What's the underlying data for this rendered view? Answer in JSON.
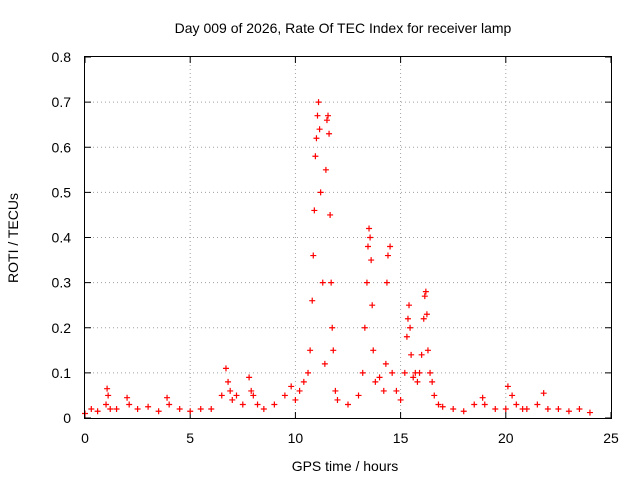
{
  "chart_data": {
    "type": "scatter",
    "title": "Day 009 of 2026, Rate Of TEC Index for receiver lamp",
    "xlabel": "GPS time / hours",
    "ylabel": "ROTI / TECUs",
    "xlim": [
      0,
      25
    ],
    "ylim": [
      0,
      0.8
    ],
    "xticks": [
      0,
      5,
      10,
      15,
      20,
      25
    ],
    "xtick_labels": [
      "0",
      "5",
      "10",
      "15",
      "20",
      "25"
    ],
    "yticks": [
      0,
      0.1,
      0.2,
      0.3,
      0.4,
      0.5,
      0.6,
      0.7,
      0.8
    ],
    "ytick_labels": [
      "0",
      "0.1",
      "0.2",
      "0.3",
      "0.4",
      "0.5",
      "0.6",
      "0.7",
      "0.8"
    ],
    "grid": true,
    "marker": "+",
    "color": "#ff0000",
    "series": [
      {
        "name": "ROTI",
        "x": [
          0.0,
          0.3,
          0.6,
          1.0,
          1.05,
          1.1,
          1.2,
          1.5,
          2.0,
          2.1,
          2.5,
          3.0,
          3.5,
          3.9,
          4.0,
          4.5,
          5.0,
          5.5,
          6.0,
          6.5,
          6.7,
          6.8,
          6.9,
          7.0,
          7.2,
          7.5,
          7.8,
          7.9,
          8.0,
          8.2,
          8.5,
          9.0,
          9.5,
          9.8,
          10.0,
          10.2,
          10.4,
          10.6,
          10.7,
          10.8,
          10.85,
          10.9,
          10.95,
          11.0,
          11.05,
          11.1,
          11.15,
          11.2,
          11.3,
          11.4,
          11.45,
          11.5,
          11.55,
          11.6,
          11.65,
          11.7,
          11.75,
          11.8,
          11.9,
          12.0,
          12.5,
          13.0,
          13.2,
          13.3,
          13.4,
          13.45,
          13.5,
          13.55,
          13.6,
          13.65,
          13.7,
          13.8,
          14.0,
          14.2,
          14.3,
          14.35,
          14.4,
          14.5,
          14.6,
          14.8,
          15.0,
          15.2,
          15.3,
          15.35,
          15.4,
          15.45,
          15.5,
          15.6,
          15.7,
          15.8,
          15.9,
          16.0,
          16.1,
          16.15,
          16.2,
          16.25,
          16.3,
          16.4,
          16.5,
          16.6,
          16.8,
          17.0,
          17.5,
          18.0,
          18.5,
          18.9,
          19.0,
          19.5,
          20.0,
          20.1,
          20.3,
          20.5,
          20.8,
          21.0,
          21.5,
          21.8,
          22.0,
          22.5,
          23.0,
          23.5,
          24.0
        ],
        "y": [
          0.01,
          0.02,
          0.015,
          0.03,
          0.065,
          0.05,
          0.02,
          0.02,
          0.045,
          0.03,
          0.02,
          0.025,
          0.015,
          0.045,
          0.03,
          0.02,
          0.015,
          0.02,
          0.02,
          0.05,
          0.11,
          0.08,
          0.06,
          0.04,
          0.05,
          0.03,
          0.09,
          0.06,
          0.05,
          0.03,
          0.02,
          0.03,
          0.05,
          0.07,
          0.04,
          0.06,
          0.08,
          0.1,
          0.15,
          0.26,
          0.36,
          0.46,
          0.58,
          0.62,
          0.67,
          0.7,
          0.64,
          0.5,
          0.3,
          0.12,
          0.55,
          0.66,
          0.67,
          0.63,
          0.45,
          0.3,
          0.2,
          0.15,
          0.06,
          0.04,
          0.03,
          0.05,
          0.1,
          0.2,
          0.3,
          0.38,
          0.42,
          0.4,
          0.35,
          0.25,
          0.15,
          0.08,
          0.09,
          0.06,
          0.12,
          0.3,
          0.36,
          0.38,
          0.1,
          0.06,
          0.04,
          0.1,
          0.18,
          0.22,
          0.25,
          0.2,
          0.14,
          0.09,
          0.1,
          0.08,
          0.1,
          0.14,
          0.22,
          0.27,
          0.28,
          0.23,
          0.15,
          0.1,
          0.08,
          0.05,
          0.03,
          0.025,
          0.02,
          0.015,
          0.03,
          0.045,
          0.03,
          0.02,
          0.02,
          0.07,
          0.05,
          0.03,
          0.02,
          0.02,
          0.03,
          0.055,
          0.02,
          0.02,
          0.015,
          0.02,
          0.012
        ]
      }
    ]
  }
}
